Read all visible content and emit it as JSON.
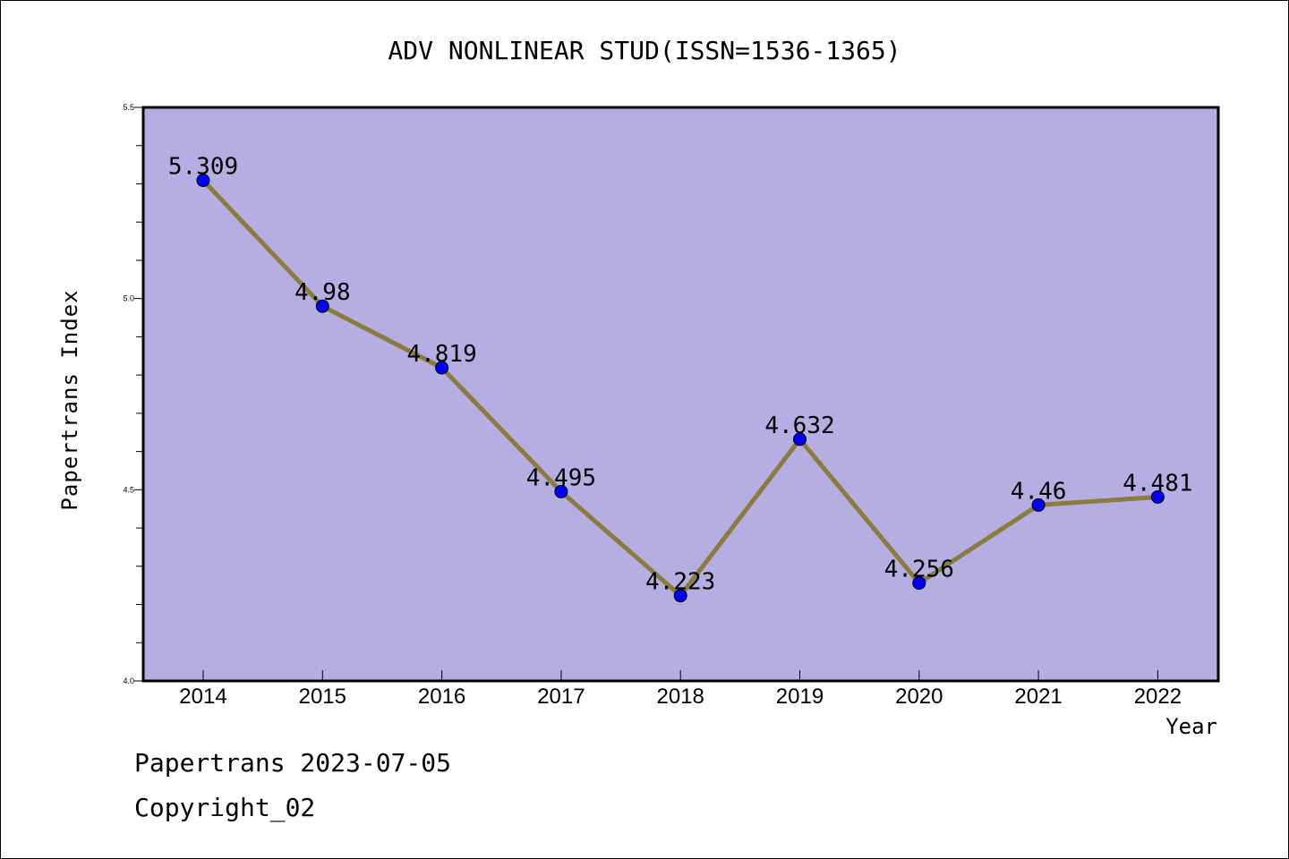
{
  "chart_data": {
    "type": "line",
    "title": "ADV NONLINEAR STUD(ISSN=1536-1365)",
    "xlabel": "Year",
    "ylabel": "Papertrans Index",
    "categories": [
      "2014",
      "2015",
      "2016",
      "2017",
      "2018",
      "2019",
      "2020",
      "2021",
      "2022"
    ],
    "series": [
      {
        "values": [
          5.309,
          4.98,
          4.819,
          4.495,
          4.223,
          4.632,
          4.256,
          4.46,
          4.481
        ],
        "labels": [
          "5.309",
          "4.98",
          "4.819",
          "4.495",
          "4.223",
          "4.632",
          "4.256",
          "4.46",
          "4.481"
        ]
      }
    ],
    "ylim": [
      4.0,
      5.5
    ],
    "yticks": [
      "4.0",
      "4.5",
      "5.0",
      "5.5"
    ],
    "grid": false,
    "colors": {
      "plot_background": "#b4aee2",
      "line": "#8b7b3c",
      "marker": "#0000ff"
    }
  },
  "footer": {
    "line1": "Papertrans 2023-07-05",
    "line2": "Copyright_02"
  }
}
